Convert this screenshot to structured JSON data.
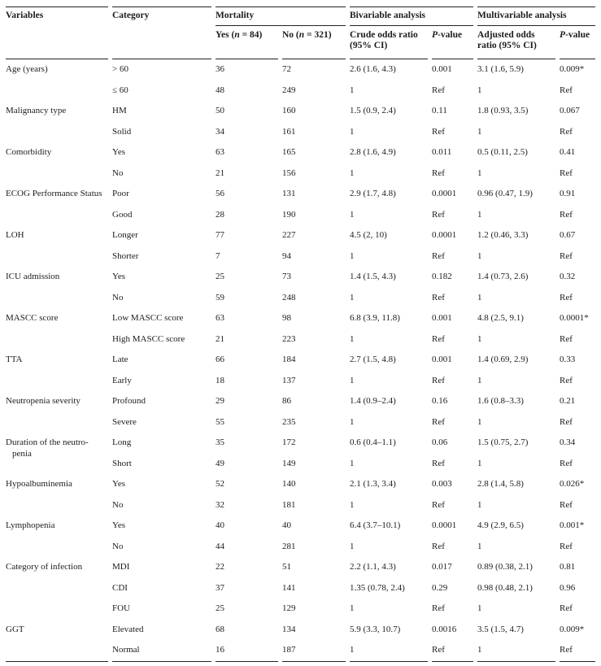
{
  "table": {
    "headers": {
      "variables": "Variables",
      "category": "Category",
      "mortality": "Mortality",
      "bivariable": "Bivariable analysis",
      "multivariable": "Multivariable analysis",
      "yes_pre": "Yes (",
      "yes_post": " = 84)",
      "no_pre": "No (",
      "no_post": " = 321)",
      "n_italic": "n",
      "crude": "Crude odds ratio (95% CI)",
      "adjusted": "Adjusted odds ratio (95% CI)",
      "p_italic": "P",
      "p_suffix": "-value"
    },
    "rule_color": "#222222",
    "text_color": "#1c1c1c",
    "groups": [
      {
        "variable": "Age (years)",
        "rows": [
          {
            "category": "> 60",
            "yes": "36",
            "no": "72",
            "crude": "2.6 (1.6, 4.3)",
            "p1": "0.001",
            "adj": "3.1 (1.6, 5.9)",
            "p2": "0.009*"
          },
          {
            "category": "≤ 60",
            "yes": "48",
            "no": "249",
            "crude": "1",
            "p1": "Ref",
            "adj": "1",
            "p2": "Ref"
          }
        ]
      },
      {
        "variable": "Malignancy type",
        "rows": [
          {
            "category": "HM",
            "yes": "50",
            "no": "160",
            "crude": "1.5 (0.9, 2.4)",
            "p1": "0.11",
            "adj": "1.8 (0.93, 3.5)",
            "p2": "0.067"
          },
          {
            "category": "Solid",
            "yes": "34",
            "no": "161",
            "crude": "1",
            "p1": "Ref",
            "adj": "1",
            "p2": "Ref"
          }
        ]
      },
      {
        "variable": "Comorbidity",
        "rows": [
          {
            "category": "Yes",
            "yes": "63",
            "no": "165",
            "crude": "2.8 (1.6, 4.9)",
            "p1": "0.011",
            "adj": "0.5 (0.11, 2.5)",
            "p2": "0.41"
          },
          {
            "category": "No",
            "yes": "21",
            "no": "156",
            "crude": "1",
            "p1": "Ref",
            "adj": "1",
            "p2": "Ref"
          }
        ]
      },
      {
        "variable": "ECOG Performance Status",
        "rows": [
          {
            "category": "Poor",
            "yes": "56",
            "no": "131",
            "crude": "2.9 (1.7, 4.8)",
            "p1": "0.0001",
            "adj": "0.96 (0.47, 1.9)",
            "p2": "0.91"
          },
          {
            "category": "Good",
            "yes": "28",
            "no": "190",
            "crude": "1",
            "p1": "Ref",
            "adj": "1",
            "p2": "Ref"
          }
        ]
      },
      {
        "variable": "LOH",
        "rows": [
          {
            "category": "Longer",
            "yes": "77",
            "no": "227",
            "crude": "4.5 (2, 10)",
            "p1": "0.0001",
            "adj": "1.2 (0.46, 3.3)",
            "p2": "0.67"
          },
          {
            "category": "Shorter",
            "yes": "7",
            "no": "94",
            "crude": "1",
            "p1": "Ref",
            "adj": "1",
            "p2": "Ref"
          }
        ]
      },
      {
        "variable": "ICU admission",
        "rows": [
          {
            "category": "Yes",
            "yes": "25",
            "no": "73",
            "crude": "1.4 (1.5, 4.3)",
            "p1": "0.182",
            "adj": "1.4 (0.73, 2.6)",
            "p2": "0.32"
          },
          {
            "category": "No",
            "yes": "59",
            "no": "248",
            "crude": "1",
            "p1": "Ref",
            "adj": "1",
            "p2": "Ref"
          }
        ]
      },
      {
        "variable": "MASCC score",
        "rows": [
          {
            "category": "Low MASCC score",
            "yes": "63",
            "no": "98",
            "crude": "6.8 (3.9, 11.8)",
            "p1": "0.001",
            "adj": "4.8 (2.5, 9.1)",
            "p2": "0.0001*"
          },
          {
            "category": "High MASCC score",
            "yes": "21",
            "no": "223",
            "crude": "1",
            "p1": "Ref",
            "adj": "1",
            "p2": "Ref"
          }
        ]
      },
      {
        "variable": "TTA",
        "rows": [
          {
            "category": "Late",
            "yes": "66",
            "no": "184",
            "crude": "2.7 (1.5, 4.8)",
            "p1": "0.001",
            "adj": "1.4 (0.69, 2.9)",
            "p2": "0.33"
          },
          {
            "category": "Early",
            "yes": "18",
            "no": "137",
            "crude": "1",
            "p1": "Ref",
            "adj": "1",
            "p2": "Ref"
          }
        ]
      },
      {
        "variable": "Neutropenia severity",
        "rows": [
          {
            "category": "Profound",
            "yes": "29",
            "no": "86",
            "crude": "1.4 (0.9–2.4)",
            "p1": "0.16",
            "adj": "1.6 (0.8–3.3)",
            "p2": "0.21"
          },
          {
            "category": "Severe",
            "yes": "55",
            "no": "235",
            "crude": "1",
            "p1": "Ref",
            "adj": "1",
            "p2": "Ref"
          }
        ]
      },
      {
        "variable": "Duration of the neutro-\npenia",
        "rows": [
          {
            "category": "Long",
            "yes": "35",
            "no": "172",
            "crude": "0.6 (0.4–1.1)",
            "p1": "0.06",
            "adj": "1.5 (0.75, 2.7)",
            "p2": "0.34"
          },
          {
            "category": "Short",
            "yes": "49",
            "no": "149",
            "crude": "1",
            "p1": "Ref",
            "adj": "1",
            "p2": "Ref"
          }
        ]
      },
      {
        "variable": "Hypoalbuminemia",
        "rows": [
          {
            "category": "Yes",
            "yes": "52",
            "no": "140",
            "crude": "2.1 (1.3, 3.4)",
            "p1": "0.003",
            "adj": "2.8 (1.4, 5.8)",
            "p2": "0.026*"
          },
          {
            "category": "No",
            "yes": "32",
            "no": "181",
            "crude": "1",
            "p1": "Ref",
            "adj": "1",
            "p2": "Ref"
          }
        ]
      },
      {
        "variable": "Lymphopenia",
        "rows": [
          {
            "category": "Yes",
            "yes": "40",
            "no": "40",
            "crude": "6.4 (3.7–10.1)",
            "p1": "0.0001",
            "adj": "4.9 (2.9, 6.5)",
            "p2": "0.001*"
          },
          {
            "category": "No",
            "yes": "44",
            "no": "281",
            "crude": "1",
            "p1": "Ref",
            "adj": "1",
            "p2": "Ref"
          }
        ]
      },
      {
        "variable": "Category of infection",
        "rows": [
          {
            "category": "MDI",
            "yes": "22",
            "no": "51",
            "crude": "2.2 (1.1, 4.3)",
            "p1": "0.017",
            "adj": "0.89 (0.38, 2.1)",
            "p2": "0.81"
          },
          {
            "category": "CDI",
            "yes": "37",
            "no": "141",
            "crude": "1.35 (0.78, 2.4)",
            "p1": "0.29",
            "adj": "0.98 (0.48, 2.1)",
            "p2": "0.96"
          },
          {
            "category": "FOU",
            "yes": "25",
            "no": "129",
            "crude": "1",
            "p1": "Ref",
            "adj": "1",
            "p2": "Ref"
          }
        ]
      },
      {
        "variable": "GGT",
        "rows": [
          {
            "category": "Elevated",
            "yes": "68",
            "no": "134",
            "crude": "5.9 (3.3, 10.7)",
            "p1": "0.0016",
            "adj": "3.5 (1.5, 4.7)",
            "p2": "0.009*"
          },
          {
            "category": "Normal",
            "yes": "16",
            "no": "187",
            "crude": "1",
            "p1": "Ref",
            "adj": "1",
            "p2": "Ref"
          }
        ]
      }
    ]
  }
}
